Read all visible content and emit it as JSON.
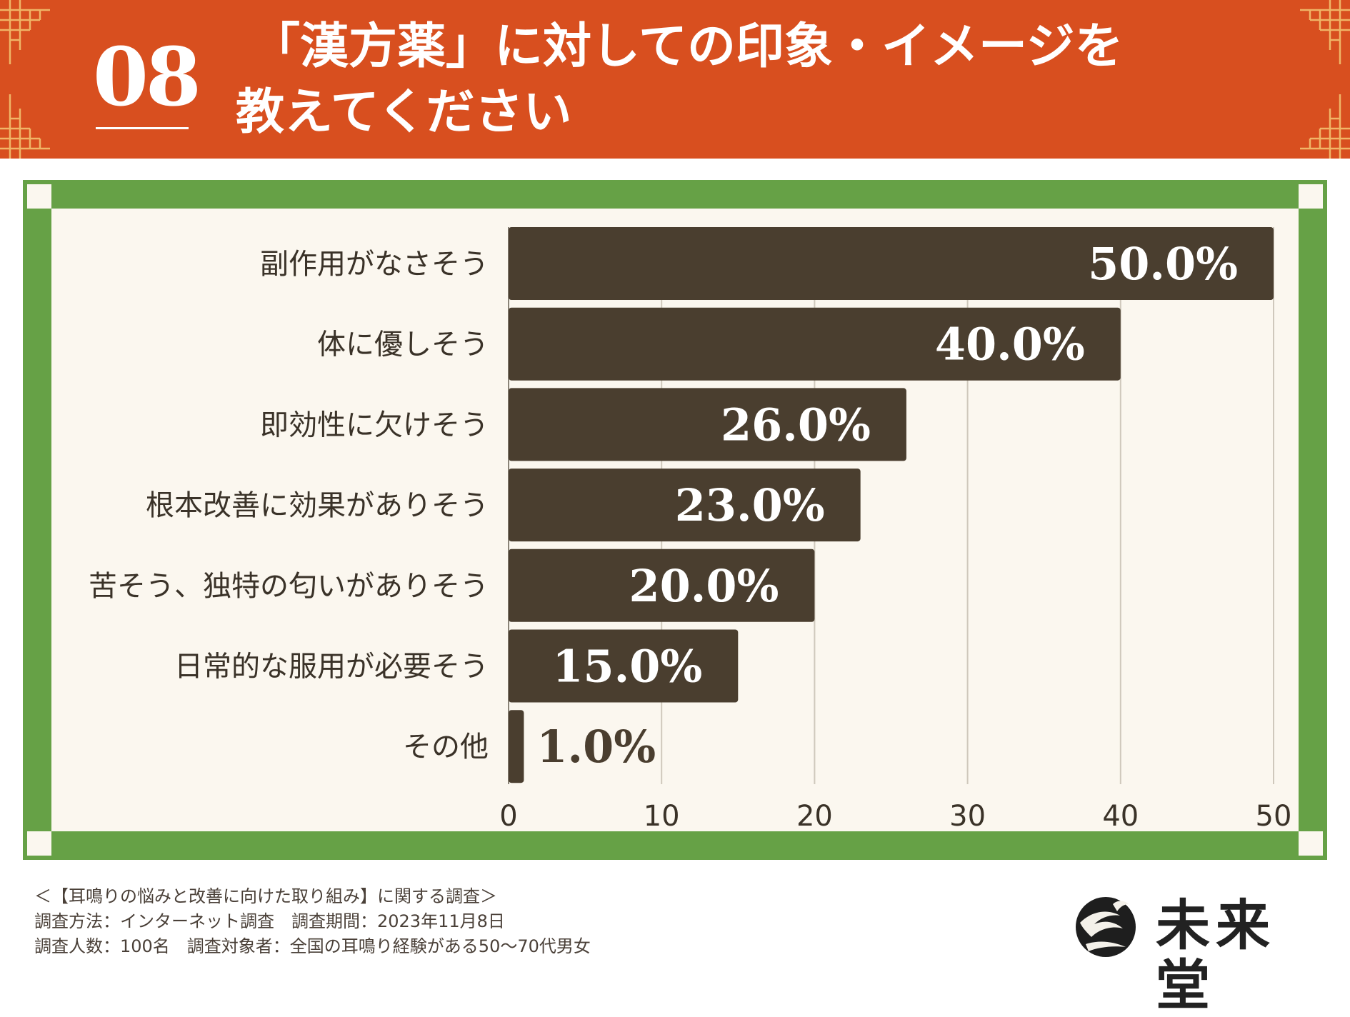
{
  "header": {
    "number": "08",
    "title_line1": "「漢方薬」に対しての印象・イメージを",
    "title_line2": "教えてください",
    "background_color": "#d84f1f"
  },
  "chart_data": {
    "type": "bar",
    "orientation": "horizontal",
    "categories": [
      "副作用がなさそう",
      "体に優しそう",
      "即効性に欠けそう",
      "根本改善に効果がありそう",
      "苦そう、独特の匂いがありそう",
      "日常的な服用が必要そう",
      "その他"
    ],
    "values": [
      50.0,
      40.0,
      26.0,
      23.0,
      20.0,
      15.0,
      1.0
    ],
    "value_labels": [
      "50.0%",
      "40.0%",
      "26.0%",
      "23.0%",
      "20.0%",
      "15.0%",
      "1.0%"
    ],
    "xlim": [
      0,
      50
    ],
    "xticks": [
      "0",
      "10",
      "20",
      "30",
      "40",
      "50"
    ],
    "grid": true,
    "bar_color": "#4a3e2f",
    "frame_color": "#66a146",
    "background_color": "#fbf7ef"
  },
  "footer": {
    "line1": "＜【耳鳴りの悩みと改善に向けた取り組み】に関する調査＞",
    "line2": "調査方法：インターネット調査　調査期間：2023年11月8日",
    "line3": "調査人数：100名　調査対象者：全国の耳鳴り経験がある50〜70代男女"
  },
  "brand": {
    "name": "未来堂",
    "logo_icon": "crane-circle-icon"
  }
}
